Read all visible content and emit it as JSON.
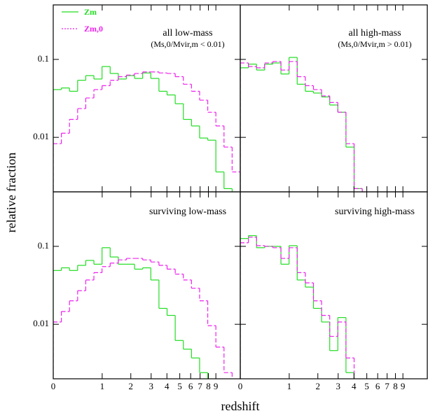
{
  "ylabel": "relative fraction",
  "xlabel": "redshift",
  "chart_data": [
    {
      "type": "histogram",
      "annotations": [
        "all low-mass",
        "(Ms,0/Mvir,m < 0.01)"
      ],
      "legend": "upper left",
      "yscale": "log",
      "ylim": [
        0.002,
        0.5
      ],
      "yticks": [
        0.01,
        0.1
      ],
      "yticklabels_shown": true,
      "xlim": [
        0,
        1.15
      ],
      "xticks": [
        {
          "value": 0,
          "label": "0"
        },
        {
          "value": 0.301,
          "label": "1"
        },
        {
          "value": 0.477,
          "label": "2"
        },
        {
          "value": 0.602,
          "label": "3"
        },
        {
          "value": 0.699,
          "label": "4"
        },
        {
          "value": 0.778,
          "label": "5"
        },
        {
          "value": 0.845,
          "label": "6"
        },
        {
          "value": 0.903,
          "label": "7"
        },
        {
          "value": 0.954,
          "label": "8"
        },
        {
          "value": 1,
          "label": "9"
        }
      ],
      "xticklabels_shown": false,
      "bins": [
        0,
        0.05,
        0.1,
        0.15,
        0.2,
        0.25,
        0.3,
        0.35,
        0.4,
        0.45,
        0.5,
        0.55,
        0.6,
        0.65,
        0.7,
        0.75,
        0.8,
        0.85,
        0.9,
        0.95,
        1,
        1.05,
        1.1,
        1.15
      ],
      "series": [
        {
          "name": "Zm",
          "color": "#22dd22",
          "linestyle": "solid",
          "values": [
            0.041,
            0.043,
            0.039,
            0.054,
            0.062,
            0.056,
            0.081,
            0.066,
            0.056,
            0.062,
            0.057,
            0.067,
            0.057,
            0.039,
            0.035,
            0.027,
            0.017,
            0.014,
            0.0098,
            0.0092,
            0.0036,
            0.0022,
            null
          ]
        },
        {
          "name": "Zm,0",
          "color": "#ee22ee",
          "linestyle": "dashed",
          "values": [
            0.0083,
            0.0113,
            0.017,
            0.0234,
            0.032,
            0.041,
            0.046,
            0.054,
            0.06,
            0.063,
            0.066,
            0.069,
            0.069,
            0.067,
            0.066,
            0.06,
            0.048,
            0.039,
            0.03,
            0.021,
            0.014,
            0.0075,
            0.0036
          ]
        }
      ]
    },
    {
      "type": "histogram",
      "annotations": [
        "all high-mass",
        "(Ms,0/Mvir,m > 0.01)"
      ],
      "yscale": "log",
      "ylim": [
        0.002,
        0.5
      ],
      "yticks": [
        0.01,
        0.1
      ],
      "yticklabels_shown": false,
      "xlim": [
        0,
        1.15
      ],
      "xticks": [
        {
          "value": 0,
          "label": "0"
        },
        {
          "value": 0.301,
          "label": "1"
        },
        {
          "value": 0.477,
          "label": "2"
        },
        {
          "value": 0.602,
          "label": "3"
        },
        {
          "value": 0.699,
          "label": "4"
        },
        {
          "value": 0.778,
          "label": "5"
        },
        {
          "value": 0.845,
          "label": "6"
        },
        {
          "value": 0.903,
          "label": "7"
        },
        {
          "value": 0.954,
          "label": "8"
        },
        {
          "value": 1,
          "label": "9"
        }
      ],
      "xticklabels_shown": false,
      "bins": [
        0,
        0.05,
        0.1,
        0.15,
        0.2,
        0.25,
        0.3,
        0.35,
        0.4,
        0.45,
        0.5,
        0.55,
        0.6,
        0.65,
        0.7,
        0.75,
        0.8,
        0.85,
        0.9,
        0.95,
        1,
        1.05,
        1.1,
        1.15
      ],
      "series": [
        {
          "color": "#22dd22",
          "linestyle": "solid",
          "values": [
            0.078,
            0.087,
            0.073,
            0.087,
            0.09,
            0.065,
            0.106,
            0.048,
            0.039,
            0.037,
            0.033,
            0.026,
            0.021,
            0.0075,
            0.0022,
            null,
            null,
            null,
            null,
            null,
            null,
            null,
            null
          ]
        },
        {
          "color": "#ee22ee",
          "linestyle": "dashed",
          "values": [
            0.09,
            0.081,
            0.078,
            0.09,
            0.094,
            0.073,
            0.094,
            0.06,
            0.046,
            0.041,
            0.034,
            0.028,
            0.021,
            0.0083,
            0.0022,
            null,
            null,
            null,
            null,
            null,
            null,
            null,
            null
          ]
        }
      ]
    },
    {
      "type": "histogram",
      "annotations": [
        "surviving low-mass"
      ],
      "yscale": "log",
      "ylim": [
        0.002,
        0.5
      ],
      "yticks": [
        0.01,
        0.1
      ],
      "yticklabels_shown": true,
      "xlim": [
        0,
        1.15
      ],
      "xticks": [
        {
          "value": 0,
          "label": "0"
        },
        {
          "value": 0.301,
          "label": "1"
        },
        {
          "value": 0.477,
          "label": "2"
        },
        {
          "value": 0.602,
          "label": "3"
        },
        {
          "value": 0.699,
          "label": "4"
        },
        {
          "value": 0.778,
          "label": "5"
        },
        {
          "value": 0.845,
          "label": "6"
        },
        {
          "value": 0.903,
          "label": "7"
        },
        {
          "value": 0.954,
          "label": "8"
        },
        {
          "value": 1,
          "label": "9"
        }
      ],
      "xticklabels_shown": true,
      "bins": [
        0,
        0.05,
        0.1,
        0.15,
        0.2,
        0.25,
        0.3,
        0.35,
        0.4,
        0.45,
        0.5,
        0.55,
        0.6,
        0.65,
        0.7,
        0.75,
        0.8,
        0.85,
        0.9,
        0.95,
        1,
        1.05,
        1.1,
        1.15
      ],
      "series": [
        {
          "color": "#22dd22",
          "linestyle": "solid",
          "values": [
            0.049,
            0.053,
            0.049,
            0.057,
            0.066,
            0.059,
            0.096,
            0.073,
            0.059,
            0.059,
            0.051,
            0.053,
            0.037,
            0.016,
            0.013,
            0.0062,
            0.0048,
            0.0037,
            0.0024,
            null,
            null,
            null,
            null
          ]
        },
        {
          "color": "#ee22ee",
          "linestyle": "dashed",
          "values": [
            0.0107,
            0.0146,
            0.02,
            0.027,
            0.037,
            0.046,
            0.055,
            0.061,
            0.067,
            0.07,
            0.07,
            0.067,
            0.063,
            0.057,
            0.051,
            0.044,
            0.037,
            0.029,
            0.02,
            0.0096,
            0.0051,
            0.0024,
            null
          ]
        }
      ]
    },
    {
      "type": "histogram",
      "annotations": [
        "surviving high-mass"
      ],
      "yscale": "log",
      "ylim": [
        0.002,
        0.5
      ],
      "yticks": [
        0.01,
        0.1
      ],
      "yticklabels_shown": false,
      "xlim": [
        0,
        1.15
      ],
      "xticks": [
        {
          "value": 0,
          "label": "0"
        },
        {
          "value": 0.301,
          "label": "1"
        },
        {
          "value": 0.477,
          "label": "2"
        },
        {
          "value": 0.602,
          "label": "3"
        },
        {
          "value": 0.699,
          "label": "4"
        },
        {
          "value": 0.778,
          "label": "5"
        },
        {
          "value": 0.845,
          "label": "6"
        },
        {
          "value": 0.903,
          "label": "7"
        },
        {
          "value": 0.954,
          "label": "8"
        },
        {
          "value": 1,
          "label": "9"
        }
      ],
      "xticklabels_shown": true,
      "bins": [
        0,
        0.05,
        0.1,
        0.15,
        0.2,
        0.25,
        0.3,
        0.35,
        0.4,
        0.45,
        0.5,
        0.55,
        0.6,
        0.65,
        0.7,
        0.75,
        0.8,
        0.85,
        0.9,
        0.95,
        1,
        1.05,
        1.1,
        1.15
      ],
      "series": [
        {
          "color": "#22dd22",
          "linestyle": "solid",
          "values": [
            0.126,
            0.137,
            0.096,
            0.1,
            0.1,
            0.059,
            0.102,
            0.037,
            0.03,
            0.016,
            0.0107,
            0.0046,
            0.0122,
            0.0024,
            null,
            null,
            null,
            null,
            null,
            null,
            null,
            null,
            null
          ]
        },
        {
          "color": "#ee22ee",
          "linestyle": "dashed",
          "values": [
            0.111,
            0.131,
            0.102,
            0.1,
            0.096,
            0.07,
            0.096,
            0.046,
            0.034,
            0.02,
            0.013,
            0.007,
            0.0107,
            0.0037,
            0.0018,
            null,
            null,
            null,
            null,
            null,
            null,
            null,
            null
          ]
        }
      ]
    }
  ]
}
